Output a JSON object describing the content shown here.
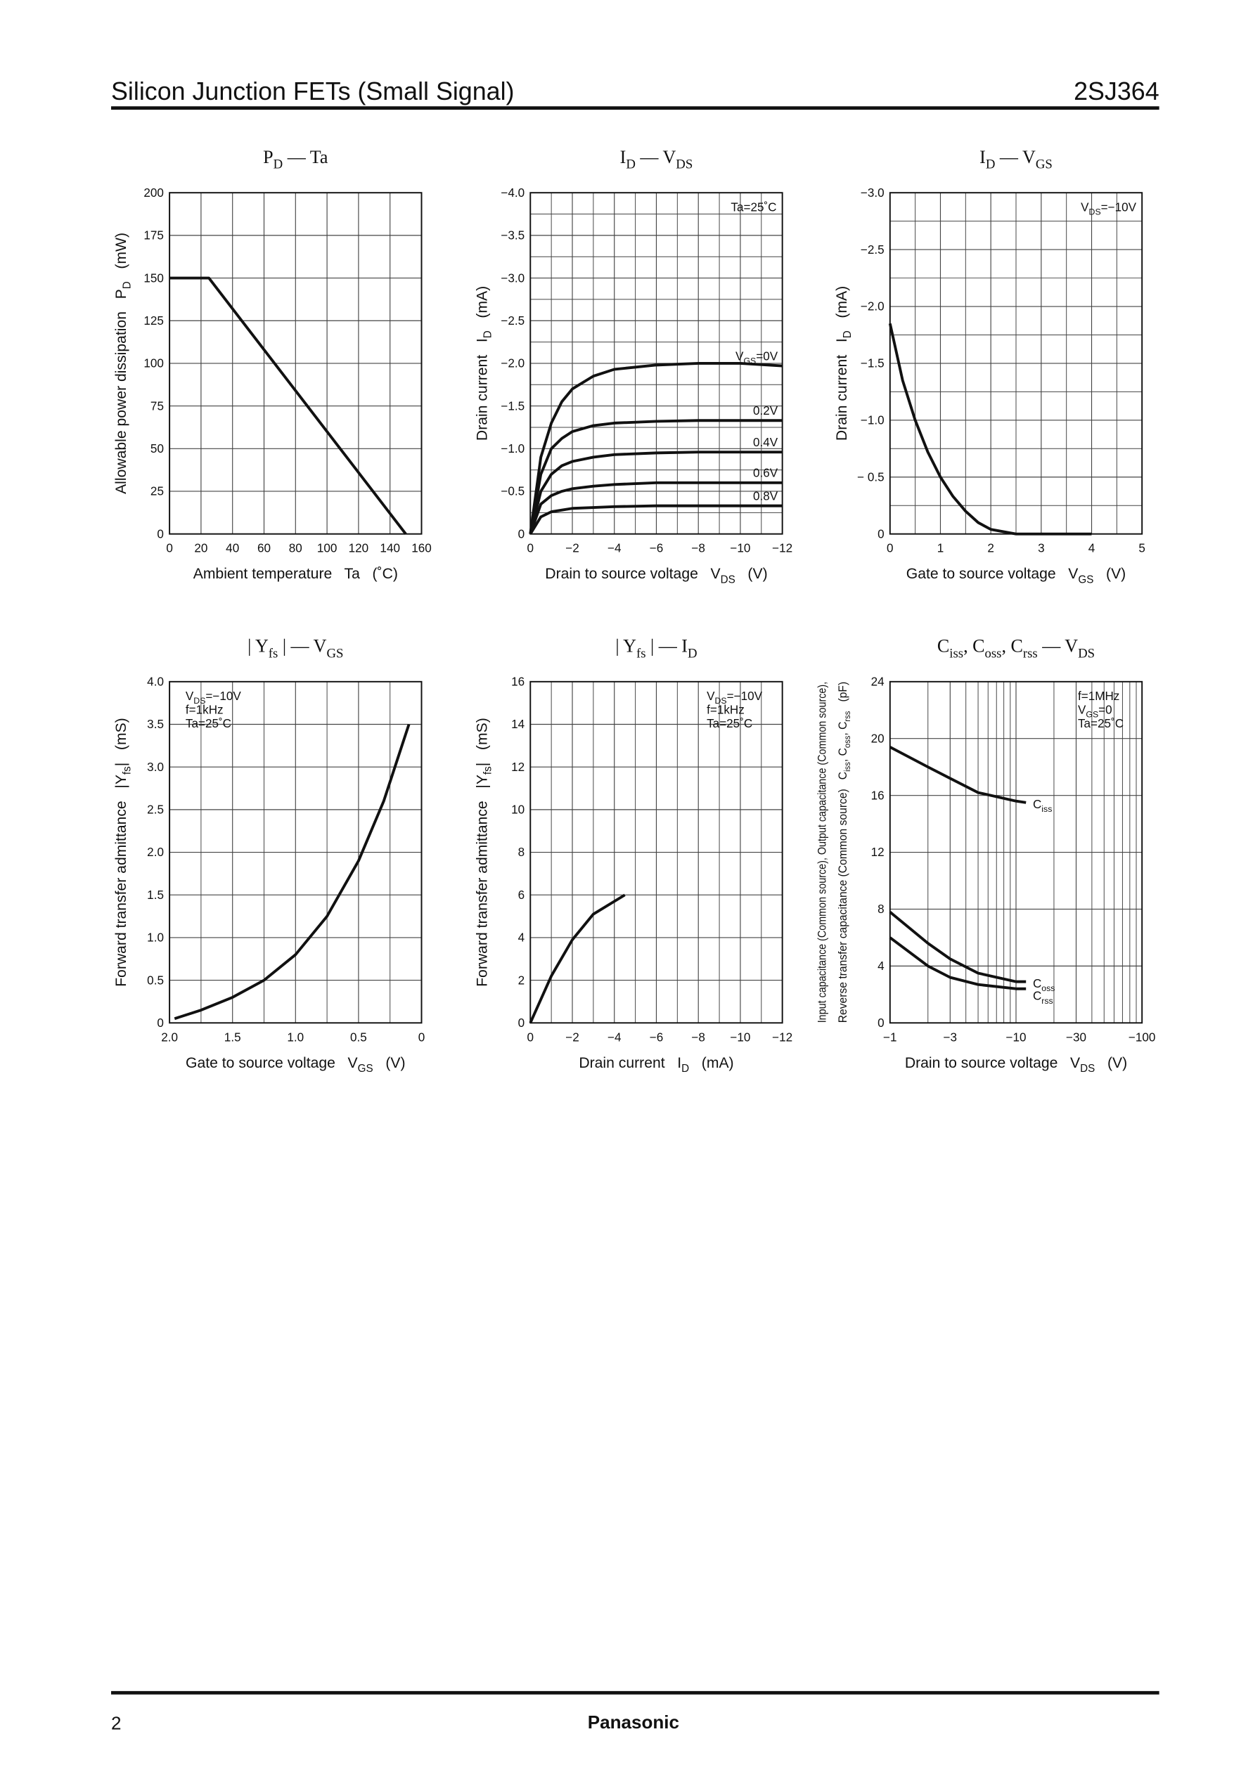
{
  "header": {
    "title": "Silicon Junction FETs (Small Signal)",
    "part": "2SJ364"
  },
  "footer": {
    "page": "2",
    "brand": "Panasonic"
  },
  "chart_data": [
    {
      "type": "line",
      "title": [
        "P",
        "D",
        " — Ta"
      ],
      "xlabel": [
        "Ambient temperature   Ta   (˚C)"
      ],
      "ylabel": [
        [
          "Allowable power dissipation   P",
          "D",
          "   (mW)"
        ]
      ],
      "xlim": [
        0,
        160
      ],
      "xticks": [
        0,
        20,
        40,
        60,
        80,
        100,
        120,
        140,
        160
      ],
      "ylim": [
        0,
        200
      ],
      "yticks": [
        0,
        25,
        50,
        75,
        100,
        125,
        150,
        175,
        200
      ],
      "grid": true,
      "x": [
        0,
        25,
        150
      ],
      "series": [
        {
          "color": "#111111",
          "values": [
            150,
            150,
            0
          ]
        }
      ]
    },
    {
      "type": "line",
      "title": [
        "I",
        "D",
        " — V",
        "DS"
      ],
      "xlabel": [
        "Drain to source voltage   V",
        "DS",
        "   (V)"
      ],
      "ylabel": [
        [
          "Drain current   I",
          "D",
          "   (mA)"
        ]
      ],
      "xlim": [
        0,
        -12
      ],
      "xticks": [
        0,
        {
          "value": -2,
          "label": "−2"
        },
        {
          "value": -4,
          "label": "−4"
        },
        {
          "value": -6,
          "label": "−6"
        },
        {
          "value": -8,
          "label": "−8"
        },
        {
          "value": -10,
          "label": "−10"
        },
        {
          "value": -12,
          "label": "−12"
        }
      ],
      "xminor": [
        -1,
        -3,
        -5,
        -7,
        -9,
        -11
      ],
      "ylim": [
        0,
        -4
      ],
      "yticks": [
        0,
        {
          "value": -0.5,
          "label": "−0.5"
        },
        {
          "value": -1,
          "label": "−1.0"
        },
        {
          "value": -1.5,
          "label": "−1.5"
        },
        {
          "value": -2,
          "label": "−2.0"
        },
        {
          "value": -2.5,
          "label": "−2.5"
        },
        {
          "value": -3,
          "label": "−3.0"
        },
        {
          "value": -3.5,
          "label": "−3.5"
        },
        {
          "value": -4,
          "label": "−4.0"
        }
      ],
      "yminor": [
        -0.25,
        -0.75,
        -1.25,
        -1.75,
        -2.25,
        -2.75,
        -3.25,
        -3.75
      ],
      "grid": true,
      "annotations": [
        [
          "Ta=25˚C"
        ]
      ],
      "annotation_corner": "top-right",
      "label_position": "above-end",
      "x": [
        0,
        -0.5,
        -1,
        -1.5,
        -2,
        -3,
        -4,
        -6,
        -8,
        -10,
        -12
      ],
      "series": [
        {
          "name": [
            "V",
            "GS",
            "=0V"
          ],
          "color": "#111111",
          "values": [
            0,
            -0.9,
            -1.3,
            -1.55,
            -1.7,
            -1.85,
            -1.93,
            -1.98,
            -2.0,
            -2.0,
            -1.97
          ]
        },
        {
          "name": [
            "0.2V"
          ],
          "color": "#111111",
          "values": [
            0,
            -0.7,
            -1.0,
            -1.12,
            -1.2,
            -1.27,
            -1.3,
            -1.32,
            -1.33,
            -1.33,
            -1.33
          ]
        },
        {
          "name": [
            "0.4V"
          ],
          "color": "#111111",
          "values": [
            0,
            -0.5,
            -0.7,
            -0.8,
            -0.85,
            -0.9,
            -0.93,
            -0.95,
            -0.96,
            -0.96,
            -0.96
          ]
        },
        {
          "name": [
            "0.6V"
          ],
          "color": "#111111",
          "values": [
            0,
            -0.35,
            -0.45,
            -0.5,
            -0.53,
            -0.56,
            -0.58,
            -0.6,
            -0.6,
            -0.6,
            -0.6
          ]
        },
        {
          "name": [
            "0.8V"
          ],
          "color": "#111111",
          "values": [
            0,
            -0.2,
            -0.26,
            -0.28,
            -0.3,
            -0.31,
            -0.32,
            -0.33,
            -0.33,
            -0.33,
            -0.33
          ]
        }
      ]
    },
    {
      "type": "line",
      "title": [
        "I",
        "D",
        " — V",
        "GS"
      ],
      "xlabel": [
        "Gate to source voltage   V",
        "GS",
        "   (V)"
      ],
      "ylabel": [
        [
          "Drain current   I",
          "D",
          "   (mA)"
        ]
      ],
      "xlim": [
        0,
        5
      ],
      "xticks": [
        0,
        1,
        2,
        3,
        4,
        5
      ],
      "xminor": [
        0.5,
        1.5,
        2.5,
        3.5,
        4.5
      ],
      "ylim": [
        0,
        -3
      ],
      "yticks": [
        0,
        {
          "value": -0.5,
          "label": "− 0.5"
        },
        {
          "value": -1,
          "label": "−1.0"
        },
        {
          "value": -1.5,
          "label": "−1.5"
        },
        {
          "value": -2,
          "label": "−2.0"
        },
        {
          "value": -2.5,
          "label": "−2.5"
        },
        {
          "value": -3,
          "label": "−3.0"
        }
      ],
      "yminor": [
        -0.25,
        -0.75,
        -1.25,
        -1.75,
        -2.25,
        -2.75
      ],
      "grid": true,
      "annotations": [
        [
          "V",
          "DS",
          "=−10V"
        ]
      ],
      "annotation_corner": "top-right",
      "x": [
        0,
        0.25,
        0.5,
        0.75,
        1,
        1.25,
        1.5,
        1.75,
        2,
        2.5,
        3,
        4
      ],
      "series": [
        {
          "color": "#111111",
          "values": [
            -1.85,
            -1.35,
            -1.0,
            -0.72,
            -0.5,
            -0.33,
            -0.2,
            -0.1,
            -0.04,
            0,
            0,
            0
          ]
        }
      ]
    },
    {
      "type": "line",
      "title": [
        "| Y",
        "fs",
        " | — V",
        "GS"
      ],
      "xlabel": [
        "Gate to source voltage   V",
        "GS",
        "   (V)"
      ],
      "ylabel": [
        [
          "Forward transfer admittance   |Y",
          "fs",
          "|   (mS)"
        ]
      ],
      "xlim": [
        2,
        0
      ],
      "xticks": [
        {
          "value": 2,
          "label": "2.0"
        },
        1.5,
        {
          "value": 1,
          "label": "1.0"
        },
        0.5,
        0
      ],
      "xminor": [
        1.75,
        1.25,
        0.75,
        0.25
      ],
      "ylim": [
        0,
        4
      ],
      "yticks": [
        0,
        0.5,
        {
          "value": 1,
          "label": "1.0"
        },
        1.5,
        {
          "value": 2,
          "label": "2.0"
        },
        2.5,
        {
          "value": 3,
          "label": "3.0"
        },
        3.5,
        {
          "value": 4,
          "label": "4.0"
        }
      ],
      "grid": true,
      "annotations": [
        [
          "V",
          "DS",
          "=−10V"
        ],
        [
          "f=1kHz"
        ],
        [
          "Ta=25˚C"
        ]
      ],
      "annotation_corner": "top-left",
      "x": [
        1.96,
        1.75,
        1.5,
        1.25,
        1.0,
        0.75,
        0.5,
        0.3,
        0.1
      ],
      "series": [
        {
          "color": "#111111",
          "values": [
            0.05,
            0.15,
            0.3,
            0.5,
            0.8,
            1.25,
            1.9,
            2.6,
            3.5
          ]
        }
      ]
    },
    {
      "type": "line",
      "title": [
        "| Y",
        "fs",
        " | — I",
        "D"
      ],
      "xlabel": [
        "Drain current   I",
        "D",
        "   (mA)"
      ],
      "ylabel": [
        [
          "Forward transfer admittance   |Y",
          "fs",
          "|   (mS)"
        ]
      ],
      "xlim": [
        0,
        -12
      ],
      "xticks": [
        0,
        {
          "value": -2,
          "label": "−2"
        },
        {
          "value": -4,
          "label": "−4"
        },
        {
          "value": -6,
          "label": "−6"
        },
        {
          "value": -8,
          "label": "−8"
        },
        {
          "value": -10,
          "label": "−10"
        },
        {
          "value": -12,
          "label": "−12"
        }
      ],
      "xminor": [
        -1,
        -3,
        -5,
        -7,
        -9,
        -11
      ],
      "ylim": [
        0,
        16
      ],
      "yticks": [
        0,
        2,
        4,
        6,
        8,
        10,
        12,
        14,
        16
      ],
      "grid": true,
      "annotations": [
        [
          "V",
          "DS",
          "=−10V"
        ],
        [
          "f=1kHz"
        ],
        [
          "Ta=25˚C"
        ]
      ],
      "annotation_corner": "top-right-inset",
      "x": [
        0,
        -1,
        -2,
        -3,
        -4.5
      ],
      "series": [
        {
          "color": "#111111",
          "values": [
            0,
            2.2,
            3.9,
            5.1,
            6.0
          ]
        }
      ]
    },
    {
      "type": "line",
      "title": [
        "C",
        "iss",
        ", C",
        "oss",
        ", C",
        "rss",
        " — V",
        "DS"
      ],
      "xlabel": [
        "Drain to source voltage   V",
        "DS",
        "   (V)"
      ],
      "ylabel": [
        [
          "Input capacitance (Common source), Output capacitance (Common source),"
        ],
        [
          "Reverse transfer capacitance (Common source)   C",
          "iss",
          ", C",
          "oss",
          ", C",
          "rss",
          "   (pF)"
        ]
      ],
      "xscale": "log",
      "xlim": [
        -1,
        -100
      ],
      "xticks": [
        {
          "value": -1,
          "label": "−1"
        },
        {
          "value": -3,
          "label": "−3"
        },
        {
          "value": -10,
          "label": "−10"
        },
        {
          "value": -30,
          "label": "−30"
        },
        {
          "value": -100,
          "label": "−100"
        }
      ],
      "xminor": [
        -2,
        -4,
        -5,
        -6,
        -7,
        -8,
        -9,
        -20,
        -40,
        -50,
        -60,
        -70,
        -80,
        -90
      ],
      "ylim": [
        0,
        24
      ],
      "yticks": [
        0,
        4,
        8,
        12,
        16,
        20,
        24
      ],
      "grid": true,
      "annotations": [
        [
          "f=1MHz"
        ],
        [
          "V",
          "GS",
          "=0"
        ],
        [
          "Ta=25˚C"
        ]
      ],
      "annotation_corner": "top-right",
      "label_position": "right-end",
      "x": [
        -1,
        -2,
        -3,
        -5,
        -10,
        -12
      ],
      "series": [
        {
          "name": [
            "C",
            "iss"
          ],
          "color": "#111111",
          "values": [
            19.4,
            18,
            17.2,
            16.2,
            15.6,
            15.5
          ]
        },
        {
          "name": [
            "C",
            "oss"
          ],
          "color": "#111111",
          "values": [
            7.8,
            5.6,
            4.5,
            3.5,
            2.9,
            2.9
          ]
        },
        {
          "name": [
            "C",
            "rss"
          ],
          "color": "#111111",
          "values": [
            6,
            4,
            3.2,
            2.7,
            2.4,
            2.4
          ]
        }
      ]
    }
  ]
}
